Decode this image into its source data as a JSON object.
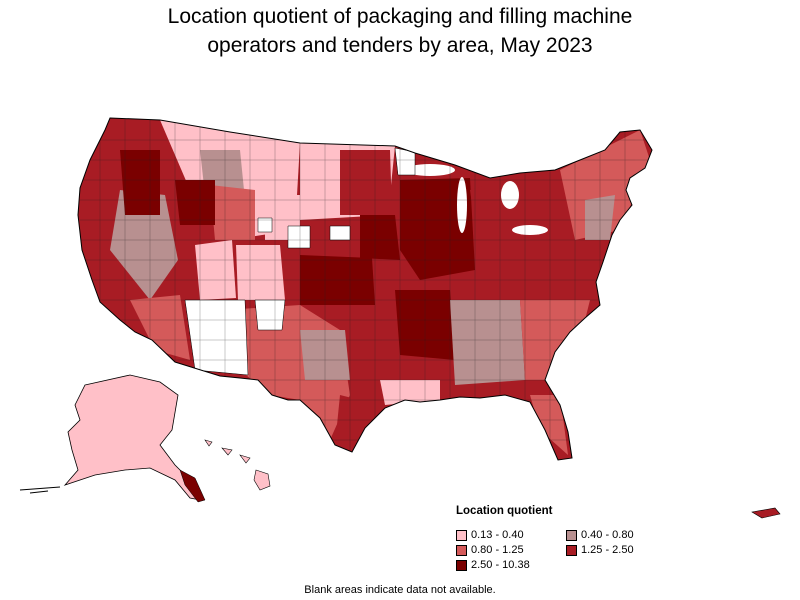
{
  "title_line1": "Location quotient of packaging and filling machine",
  "title_line2": "operators and tenders by area, May 2023",
  "legend": {
    "title": "Location quotient",
    "items": [
      {
        "label": "0.13 - 0.40",
        "color": "#ffc0c8"
      },
      {
        "label": "0.40 - 0.80",
        "color": "#b89090"
      },
      {
        "label": "0.80 - 1.25",
        "color": "#d45a5a"
      },
      {
        "label": "1.25 - 2.50",
        "color": "#a81c24"
      },
      {
        "label": "2.50 - 10.38",
        "color": "#7a0000"
      }
    ]
  },
  "footnote": "Blank areas indicate data not available."
}
